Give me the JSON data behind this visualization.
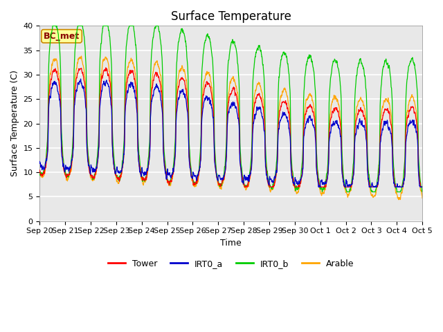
{
  "title": "Surface Temperature",
  "ylabel": "Surface Temperature (C)",
  "xlabel": "Time",
  "annotation": "BC_met",
  "ylim": [
    0,
    40
  ],
  "x_tick_labels": [
    "Sep 20",
    "Sep 21",
    "Sep 22",
    "Sep 23",
    "Sep 24",
    "Sep 25",
    "Sep 26",
    "Sep 27",
    "Sep 28",
    "Sep 29",
    "Sep 30",
    "Oct 1",
    "Oct 2",
    "Oct 3",
    "Oct 4",
    "Oct 5"
  ],
  "legend_labels": [
    "Tower",
    "IRT0_a",
    "IRT0_b",
    "Arable"
  ],
  "colors": {
    "Tower": "#FF0000",
    "IRT0_a": "#0000CC",
    "IRT0_b": "#00CC00",
    "Arable": "#FFA500"
  },
  "bg_color": "#E8E8E8",
  "title_fontsize": 12,
  "label_fontsize": 9,
  "tick_fontsize": 8,
  "grid_color": "#FFFFFF",
  "annotation_bg": "#FFFF99",
  "annotation_border": "#CC8800",
  "annotation_text_color": "#880000",
  "n_days": 15,
  "pts_per_day": 144
}
